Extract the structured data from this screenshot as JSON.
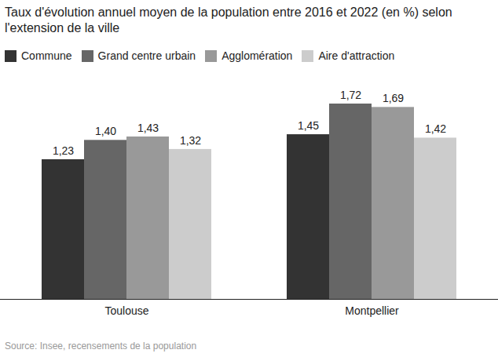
{
  "chart_data": {
    "type": "bar",
    "title": "Taux d'évolution annuel moyen de la population entre 2016 et 2022 (en %) selon l'extension de la ville",
    "caption": "Source: Insee, recensements de la population",
    "categories": [
      "Toulouse",
      "Montpellier"
    ],
    "series": [
      {
        "name": "Commune",
        "color": "#333333",
        "values": [
          1.23,
          1.45
        ],
        "value_labels": [
          "1,23",
          "1,45"
        ]
      },
      {
        "name": "Grand centre urbain",
        "color": "#666666",
        "values": [
          1.4,
          1.72
        ],
        "value_labels": [
          "1,40",
          "1,72"
        ]
      },
      {
        "name": "Agglomération",
        "color": "#999999",
        "values": [
          1.43,
          1.69
        ],
        "value_labels": [
          "1,43",
          "1,69"
        ]
      },
      {
        "name": "Aire d'attraction",
        "color": "#cccccc",
        "values": [
          1.32,
          1.42
        ],
        "value_labels": [
          "1,32",
          "1,42"
        ]
      }
    ],
    "ylim": [
      0,
      1.72
    ],
    "yticks": [],
    "grid": false,
    "legend": "top-left",
    "data_labels": true,
    "tick_labels": "x"
  }
}
